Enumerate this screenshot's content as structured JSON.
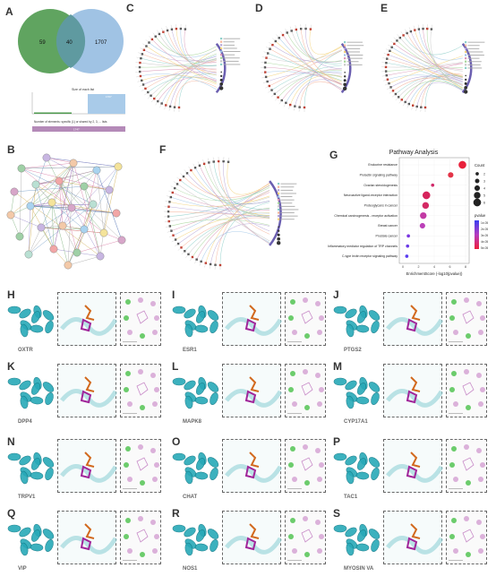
{
  "panels": {
    "A": "A",
    "B": "B",
    "C": "C",
    "D": "D",
    "E": "E",
    "F": "F",
    "G": "G",
    "H": "H",
    "I": "I",
    "J": "J",
    "K": "K",
    "L": "L",
    "M": "M",
    "N": "N",
    "O": "O",
    "P": "P",
    "Q": "Q",
    "R": "R",
    "S": "S"
  },
  "venn": {
    "left_only": "59",
    "overlap": "40",
    "right_only": "1707",
    "left_color": "#4f9a4f",
    "right_color": "#8fb8df"
  },
  "upset": {
    "title": "Size of each list",
    "bar_label": "1707",
    "subtitle": "Number of elements: specific (1) or shared by 2, 3, ... lists",
    "row_label": "1747",
    "bar_color": "#a9cbe9",
    "row_color": "#b48ab8"
  },
  "chart_data": {
    "type": "scatter",
    "title": "Pathway Analysis",
    "xlabel": "EnrichmentScore (-log10(pvalue))",
    "categories": [
      "Endocrine resistance",
      "Prolactin signaling pathway",
      "Ovarian steroidogenesis",
      "Neuroactive ligand-receptor interaction",
      "Proteoglycans in cancer",
      "Chemical carcinogenesis - receptor activation",
      "Breast cancer",
      "Prostate cancer",
      "Inflammatory mediator regulation of TRP channels",
      "C-type lectin receptor signaling pathway"
    ],
    "x": [
      7.6,
      6.1,
      3.8,
      3.0,
      2.9,
      2.6,
      2.5,
      0.7,
      0.6,
      0.5
    ],
    "count": [
      6,
      4,
      2,
      6,
      5,
      5,
      4,
      2,
      2,
      2
    ],
    "pvalue_color": [
      "#e8203a",
      "#e33448",
      "#d12a6a",
      "#d6245c",
      "#d42a64",
      "#c23aa4",
      "#bb40b8",
      "#7a35e0",
      "#6a3ae6",
      "#5a3df0"
    ],
    "xlim": [
      0,
      8
    ],
    "size_legend_title": "Count",
    "size_legend": [
      "2",
      "3",
      "4",
      "5",
      "6"
    ],
    "color_legend_title": "pvalue",
    "color_legend": [
      "1e-05",
      "2e-05",
      "3e-05",
      "4e-05",
      "5e-05"
    ]
  },
  "docking": [
    {
      "panel": "H",
      "gene": "OXTR"
    },
    {
      "panel": "I",
      "gene": "ESR1"
    },
    {
      "panel": "J",
      "gene": "PTGS2"
    },
    {
      "panel": "K",
      "gene": "DPP4"
    },
    {
      "panel": "L",
      "gene": "MAPK8"
    },
    {
      "panel": "M",
      "gene": "CYP17A1"
    },
    {
      "panel": "N",
      "gene": "TRPV1"
    },
    {
      "panel": "O",
      "gene": "CHAT"
    },
    {
      "panel": "P",
      "gene": "TAC1"
    },
    {
      "panel": "Q",
      "gene": "VIP"
    },
    {
      "panel": "R",
      "gene": "NOS1"
    },
    {
      "panel": "S",
      "gene": "MYOSIN VA"
    }
  ]
}
